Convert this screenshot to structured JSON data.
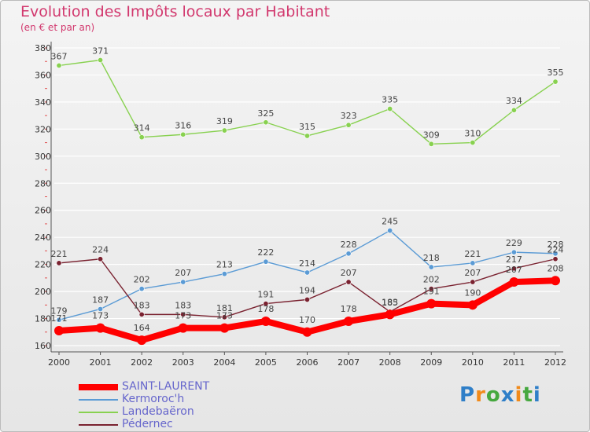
{
  "title": "Evolution des Impôts locaux par Habitant",
  "subtitle": "(en € et par an)",
  "logo": "Proxiti",
  "colors": {
    "title": "#d2386e",
    "legend_text": "#6666cc",
    "axis": "#555555",
    "grid": "#ffffff"
  },
  "chart_data": {
    "type": "line",
    "title": "Evolution des Impôts locaux par Habitant",
    "subtitle": "(en € et par an)",
    "xlabel": "",
    "ylabel": "",
    "x": [
      "2000",
      "2001",
      "2002",
      "2003",
      "2004",
      "2005",
      "2006",
      "2007",
      "2008",
      "2009",
      "2010",
      "2011",
      "2012"
    ],
    "ylim": [
      160,
      380
    ],
    "yticks": [
      160,
      180,
      200,
      220,
      240,
      260,
      280,
      300,
      320,
      340,
      360,
      380
    ],
    "grid": true,
    "legend_position": "bottom-left",
    "series": [
      {
        "name": "SAINT-LAURENT",
        "color": "#ff0000",
        "width": "thick",
        "values": [
          171,
          173,
          164,
          173,
          173,
          178,
          170,
          178,
          183,
          191,
          190,
          207,
          208
        ]
      },
      {
        "name": "Kermoroc'h",
        "color": "#5b9bd5",
        "width": "thin",
        "values": [
          179,
          187,
          202,
          207,
          213,
          222,
          214,
          228,
          245,
          218,
          221,
          229,
          228
        ]
      },
      {
        "name": "Landebaëron",
        "color": "#88d150",
        "width": "thin",
        "values": [
          367,
          371,
          314,
          316,
          319,
          325,
          315,
          323,
          335,
          309,
          310,
          334,
          355
        ]
      },
      {
        "name": "Pédernec",
        "color": "#7a2230",
        "width": "thin",
        "values": [
          221,
          224,
          183,
          183,
          181,
          191,
          194,
          207,
          185,
          202,
          207,
          217,
          224
        ]
      }
    ]
  }
}
